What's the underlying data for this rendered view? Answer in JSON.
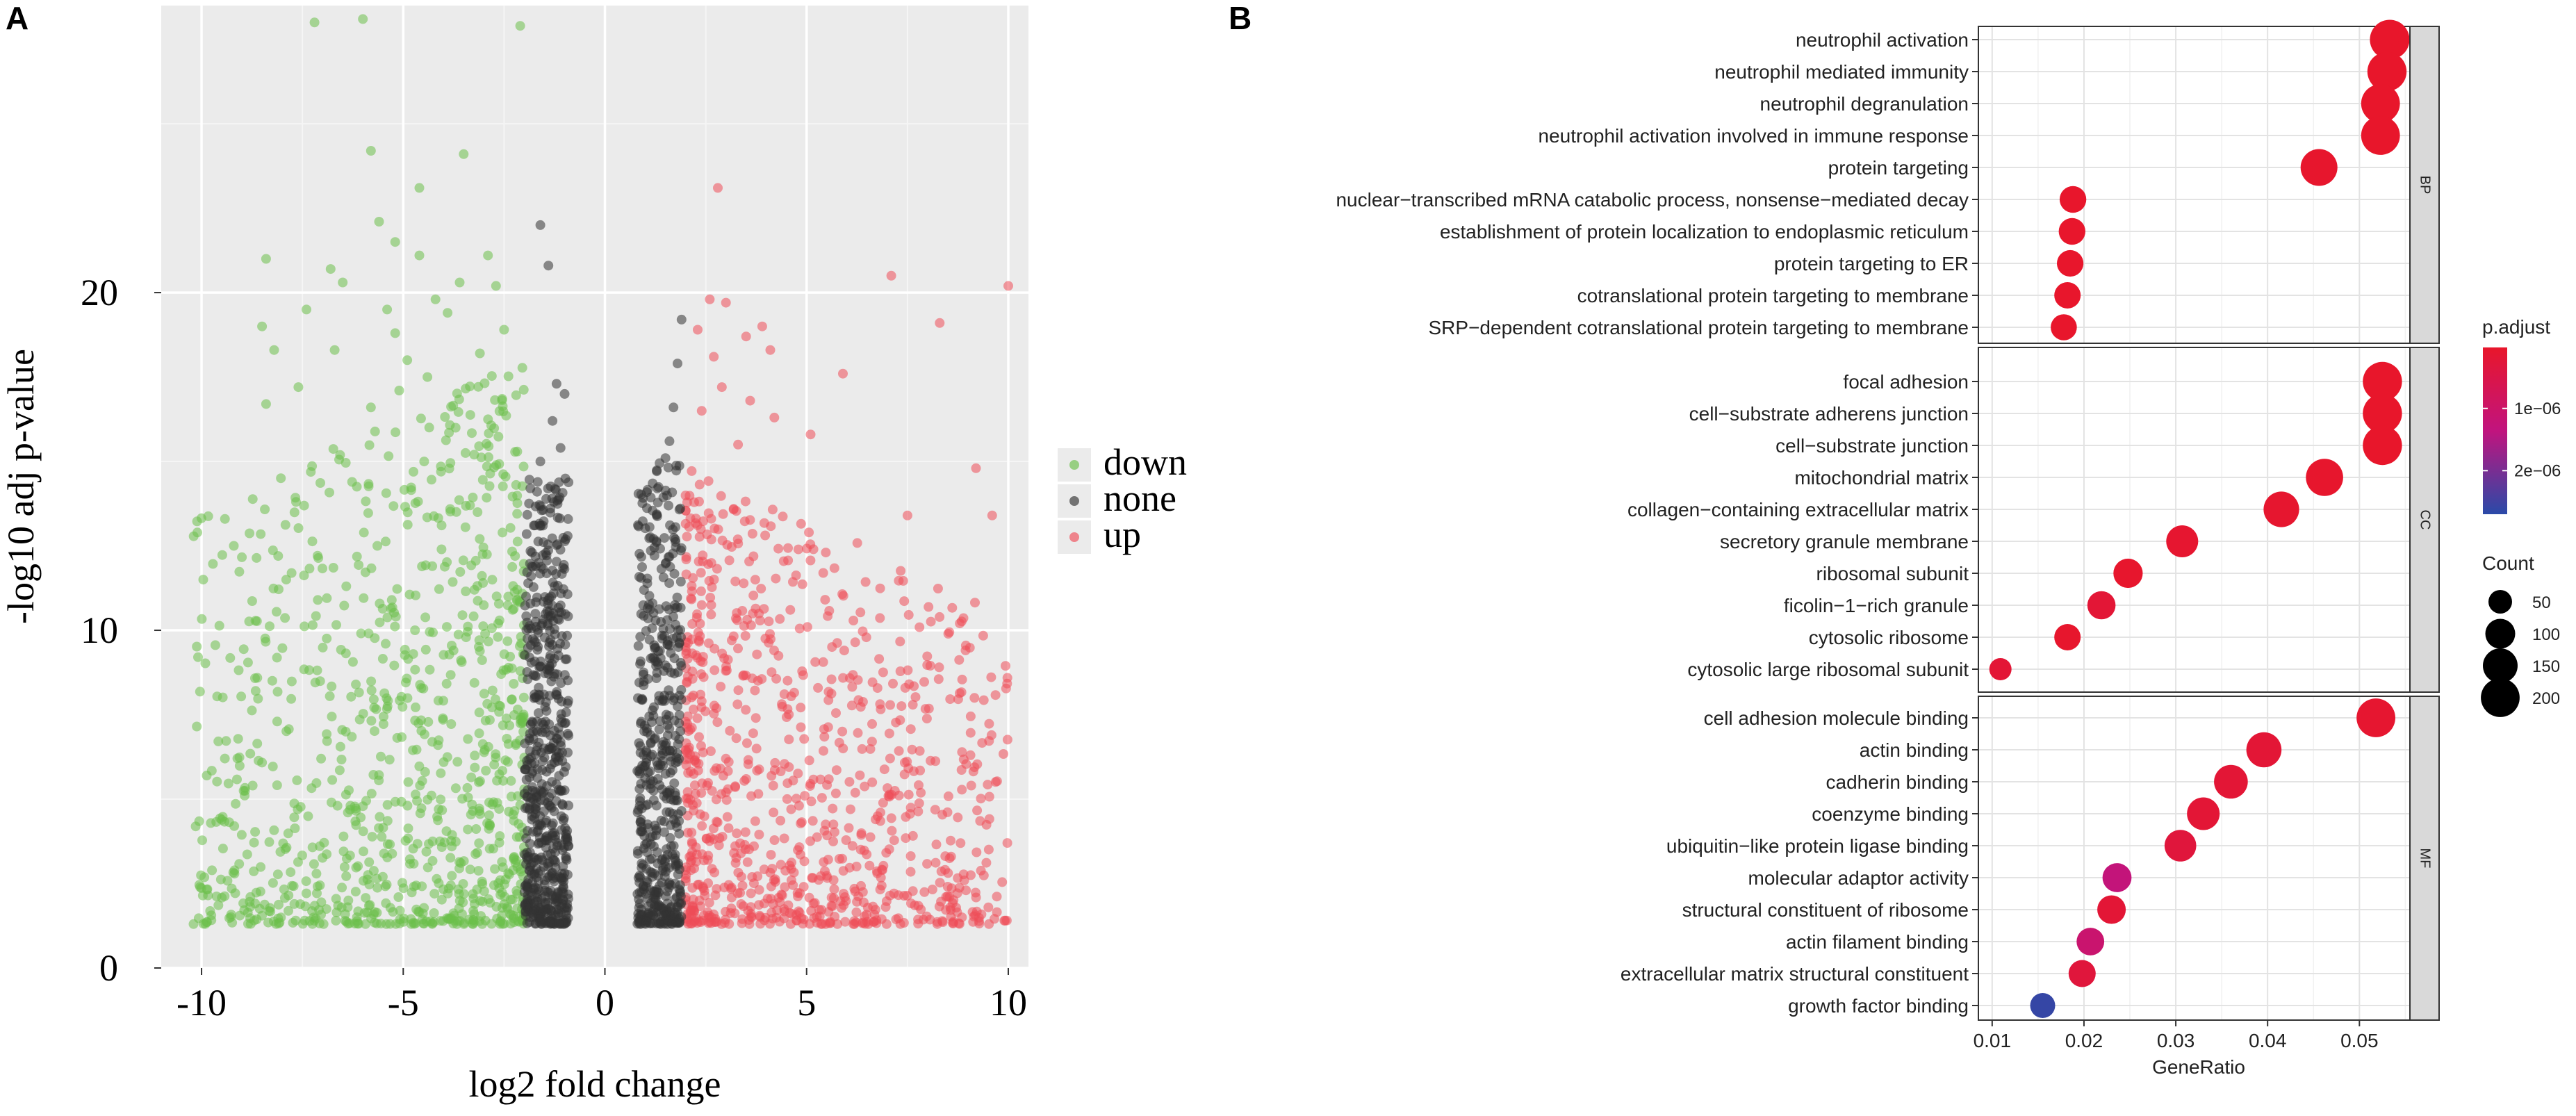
{
  "panel_labels": {
    "a": "A",
    "b": "B"
  },
  "chart_data": [
    {
      "id": "volcano",
      "type": "scatter",
      "xlabel": "log2 fold change",
      "ylabel": "-log10 adj p-value",
      "xlim": [
        -11,
        10.5
      ],
      "ylim": [
        0,
        28.5
      ],
      "xticks": [
        -10,
        -5,
        0,
        5,
        10
      ],
      "xtick_labels": [
        "-10",
        "-5",
        "0",
        "5",
        "10"
      ],
      "yticks": [
        0,
        10,
        20
      ],
      "ytick_labels": [
        "0",
        "10",
        "20"
      ],
      "grid": true,
      "legend": {
        "placement": "right",
        "entries": [
          {
            "label": "down",
            "color": "#6cc04a"
          },
          {
            "label": "none",
            "color": "#333333"
          },
          {
            "label": "up",
            "color": "#ef4c57"
          }
        ]
      },
      "series": [
        {
          "name": "down",
          "color": "#6cc04a",
          "highlighted_points": [
            [
              -7.2,
              28.0
            ],
            [
              -6.0,
              28.1
            ],
            [
              -2.1,
              27.9
            ],
            [
              -5.8,
              24.2
            ],
            [
              -3.5,
              24.1
            ],
            [
              -4.6,
              23.1
            ],
            [
              -5.6,
              22.1
            ],
            [
              -5.2,
              21.5
            ],
            [
              -8.4,
              21.0
            ],
            [
              -4.6,
              21.1
            ],
            [
              -2.9,
              21.1
            ],
            [
              -6.8,
              20.7
            ],
            [
              -6.5,
              20.3
            ],
            [
              -3.6,
              20.3
            ],
            [
              -2.7,
              20.2
            ],
            [
              -4.2,
              19.8
            ],
            [
              -7.4,
              19.5
            ],
            [
              -5.4,
              19.5
            ],
            [
              -3.9,
              19.4
            ],
            [
              -8.5,
              19.0
            ],
            [
              -5.2,
              18.8
            ],
            [
              -2.5,
              18.9
            ],
            [
              -4.9,
              18.0
            ],
            [
              -8.2,
              18.3
            ],
            [
              -6.7,
              18.3
            ],
            [
              -3.1,
              18.2
            ],
            [
              -4.4,
              17.5
            ],
            [
              -7.6,
              17.2
            ],
            [
              -5.1,
              17.1
            ],
            [
              -8.4,
              16.7
            ],
            [
              -5.8,
              16.6
            ],
            [
              -3.7,
              16.0
            ],
            [
              -9.2,
              12.5
            ],
            [
              -8.1,
              12.2
            ],
            [
              -7.9,
              11.5
            ]
          ],
          "bulk": {
            "x_range": [
              -10.2,
              -2.0
            ],
            "y_range": [
              1.3,
              18.0
            ],
            "n": 950,
            "core_x": -3.0
          }
        },
        {
          "name": "none",
          "color": "#333333",
          "highlighted_points": [
            [
              -1.6,
              22.0
            ],
            [
              -1.4,
              20.8
            ],
            [
              -1.2,
              17.3
            ],
            [
              -1.0,
              17.0
            ],
            [
              -1.3,
              16.2
            ],
            [
              -1.1,
              15.4
            ],
            [
              -1.6,
              15.0
            ],
            [
              1.7,
              16.6
            ],
            [
              1.8,
              17.9
            ],
            [
              1.6,
              15.6
            ],
            [
              1.5,
              15.1
            ],
            [
              1.9,
              19.2
            ],
            [
              1.3,
              14.2
            ]
          ],
          "bulk_left": {
            "x_range": [
              -2.0,
              -0.9
            ],
            "y_range": [
              1.3,
              14.5
            ],
            "n": 600
          },
          "bulk_right": {
            "x_range": [
              0.8,
              1.9
            ],
            "y_range": [
              1.3,
              15.0
            ],
            "n": 500
          }
        },
        {
          "name": "up",
          "color": "#ef4c57",
          "highlighted_points": [
            [
              2.8,
              23.1
            ],
            [
              7.1,
              20.5
            ],
            [
              10.0,
              20.2
            ],
            [
              8.3,
              19.1
            ],
            [
              2.6,
              19.8
            ],
            [
              3.0,
              19.7
            ],
            [
              3.9,
              19.0
            ],
            [
              3.5,
              18.7
            ],
            [
              2.3,
              18.9
            ],
            [
              4.1,
              18.3
            ],
            [
              2.7,
              18.1
            ],
            [
              2.9,
              17.2
            ],
            [
              5.9,
              17.6
            ],
            [
              3.6,
              16.8
            ],
            [
              4.2,
              16.3
            ],
            [
              2.4,
              16.5
            ],
            [
              5.1,
              15.8
            ],
            [
              3.3,
              15.5
            ],
            [
              9.2,
              14.8
            ],
            [
              7.5,
              13.4
            ],
            [
              9.6,
              13.4
            ]
          ],
          "bulk": {
            "x_range": [
              2.0,
              10.0
            ],
            "y_range": [
              1.3,
              15.0
            ],
            "n": 900,
            "core_x": 3.0
          }
        }
      ]
    },
    {
      "id": "go-dotplot",
      "type": "scatter",
      "xlabel": "GeneRatio",
      "xlim": [
        0.0085,
        0.0555
      ],
      "xticks": [
        0.01,
        0.02,
        0.03,
        0.04,
        0.05
      ],
      "xtick_labels": [
        "0.01",
        "0.02",
        "0.03",
        "0.04",
        "0.05"
      ],
      "grid": true,
      "color_legend": {
        "title": "p.adjust",
        "ticks": [
          1e-06,
          2e-06
        ],
        "tick_labels": [
          "1e−06",
          "2e−06"
        ],
        "range": [
          2e-08,
          2.7e-06
        ],
        "colors": [
          "#e8162b",
          "#c1147e",
          "#2a4aa8"
        ]
      },
      "size_legend": {
        "title": "Count",
        "values": [
          50,
          100,
          150,
          200
        ],
        "labels": [
          "50",
          "100",
          "150",
          "200"
        ]
      },
      "facets": [
        {
          "label": "BP",
          "terms": [
            {
              "term": "neutrophil activation",
              "gene_ratio": 0.0533,
              "count": 210,
              "p_adjust": 1e-08
            },
            {
              "term": "neutrophil mediated immunity",
              "gene_ratio": 0.053,
              "count": 205,
              "p_adjust": 1e-08
            },
            {
              "term": "neutrophil degranulation",
              "gene_ratio": 0.0523,
              "count": 200,
              "p_adjust": 1e-08
            },
            {
              "term": "neutrophil activation involved in immune response",
              "gene_ratio": 0.0523,
              "count": 200,
              "p_adjust": 1e-08
            },
            {
              "term": "protein targeting",
              "gene_ratio": 0.0456,
              "count": 175,
              "p_adjust": 5e-08
            },
            {
              "term": "nuclear−transcribed mRNA catabolic process, nonsense−mediated decay",
              "gene_ratio": 0.0188,
              "count": 72,
              "p_adjust": 3e-08
            },
            {
              "term": "establishment of protein localization to endoplasmic reticulum",
              "gene_ratio": 0.0187,
              "count": 72,
              "p_adjust": 3e-08
            },
            {
              "term": "protein targeting to ER",
              "gene_ratio": 0.0185,
              "count": 71,
              "p_adjust": 3e-08
            },
            {
              "term": "cotranslational protein targeting to membrane",
              "gene_ratio": 0.0182,
              "count": 70,
              "p_adjust": 3e-08
            },
            {
              "term": "SRP−dependent cotranslational protein targeting to membrane",
              "gene_ratio": 0.0178,
              "count": 68,
              "p_adjust": 3e-08
            }
          ]
        },
        {
          "label": "CC",
          "terms": [
            {
              "term": "focal adhesion",
              "gene_ratio": 0.0525,
              "count": 205,
              "p_adjust": 1e-08
            },
            {
              "term": "cell−substrate adherens junction",
              "gene_ratio": 0.0525,
              "count": 205,
              "p_adjust": 1e-08
            },
            {
              "term": "cell−substrate junction",
              "gene_ratio": 0.0525,
              "count": 205,
              "p_adjust": 1e-08
            },
            {
              "term": "mitochondrial matrix",
              "gene_ratio": 0.0462,
              "count": 180,
              "p_adjust": 5e-08
            },
            {
              "term": "collagen−containing extracellular matrix",
              "gene_ratio": 0.0415,
              "count": 160,
              "p_adjust": 8e-08
            },
            {
              "term": "secretory granule membrane",
              "gene_ratio": 0.0307,
              "count": 120,
              "p_adjust": 1e-07
            },
            {
              "term": "ribosomal subunit",
              "gene_ratio": 0.0248,
              "count": 95,
              "p_adjust": 6e-08
            },
            {
              "term": "ficolin−1−rich granule",
              "gene_ratio": 0.0219,
              "count": 85,
              "p_adjust": 2e-07
            },
            {
              "term": "cytosolic ribosome",
              "gene_ratio": 0.0182,
              "count": 70,
              "p_adjust": 6e-08
            },
            {
              "term": "cytosolic large ribosomal subunit",
              "gene_ratio": 0.0109,
              "count": 42,
              "p_adjust": 2e-07
            }
          ]
        },
        {
          "label": "MF",
          "terms": [
            {
              "term": "cell adhesion molecule binding",
              "gene_ratio": 0.0518,
              "count": 200,
              "p_adjust": 1e-07
            },
            {
              "term": "actin binding",
              "gene_ratio": 0.0396,
              "count": 155,
              "p_adjust": 2e-07
            },
            {
              "term": "cadherin binding",
              "gene_ratio": 0.036,
              "count": 140,
              "p_adjust": 2e-07
            },
            {
              "term": "coenzyme binding",
              "gene_ratio": 0.033,
              "count": 128,
              "p_adjust": 2e-07
            },
            {
              "term": "ubiquitin−like protein ligase binding",
              "gene_ratio": 0.0305,
              "count": 118,
              "p_adjust": 3e-07
            },
            {
              "term": "molecular adaptor activity",
              "gene_ratio": 0.0236,
              "count": 92,
              "p_adjust": 1.3e-06
            },
            {
              "term": "structural constituent of ribosome",
              "gene_ratio": 0.023,
              "count": 88,
              "p_adjust": 2e-07
            },
            {
              "term": "actin filament binding",
              "gene_ratio": 0.0207,
              "count": 80,
              "p_adjust": 1.1e-06
            },
            {
              "term": "extracellular matrix structural constituent",
              "gene_ratio": 0.0198,
              "count": 76,
              "p_adjust": 3e-07
            },
            {
              "term": "growth factor binding",
              "gene_ratio": 0.0155,
              "count": 60,
              "p_adjust": 2.6e-06
            }
          ]
        }
      ]
    }
  ]
}
